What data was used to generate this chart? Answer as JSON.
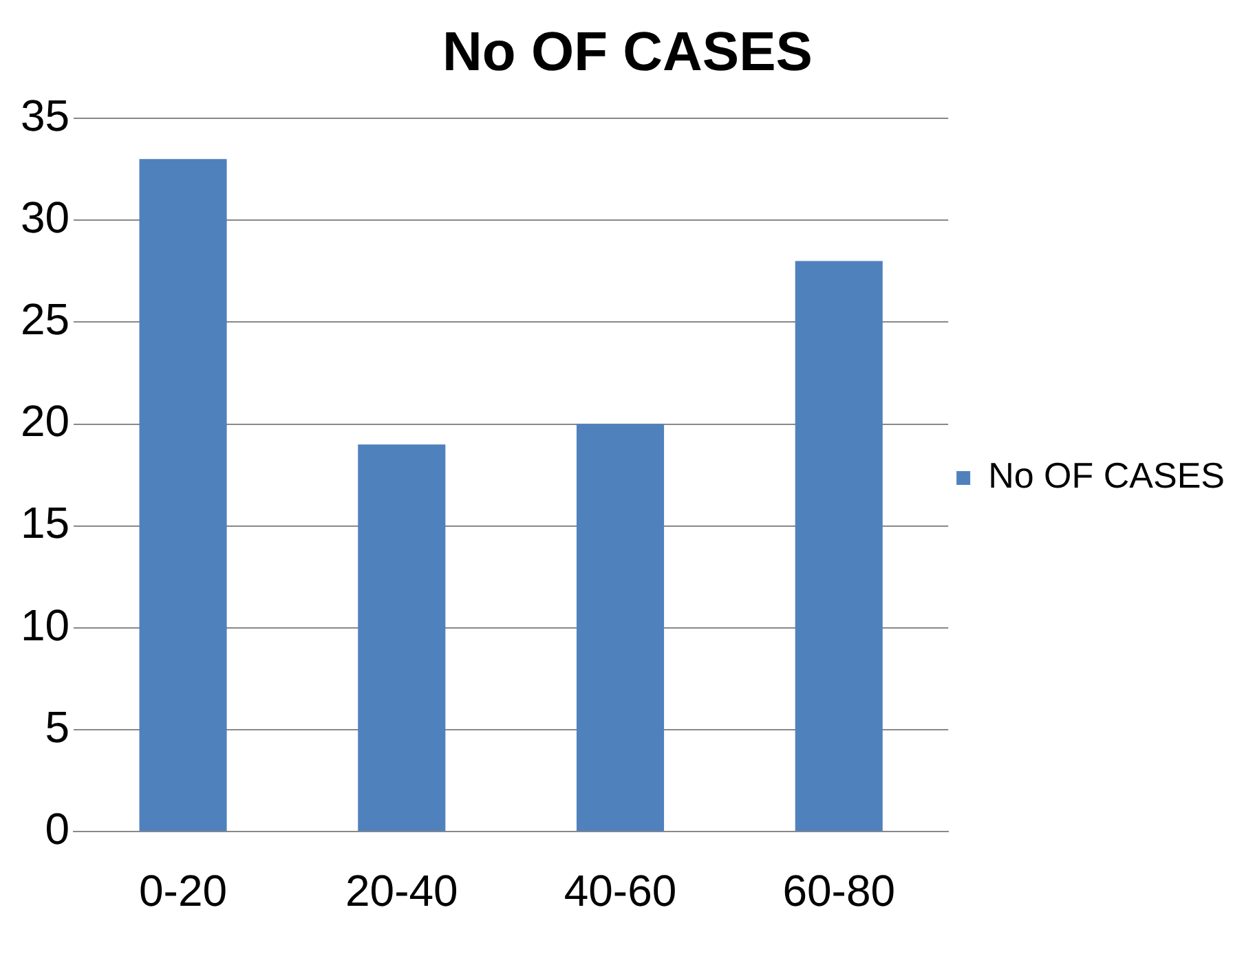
{
  "chart_data": {
    "type": "bar",
    "title": "No OF CASES",
    "categories": [
      "0-20",
      "20-40",
      "40-60",
      "60-80"
    ],
    "series": [
      {
        "name": "No OF CASES",
        "color": "#4f81bd",
        "values": [
          33,
          19,
          20,
          28
        ]
      }
    ],
    "ylim": [
      0,
      35
    ],
    "yticks": [
      0,
      5,
      10,
      15,
      20,
      25,
      30,
      35
    ],
    "grid": "y",
    "legend": "right"
  }
}
